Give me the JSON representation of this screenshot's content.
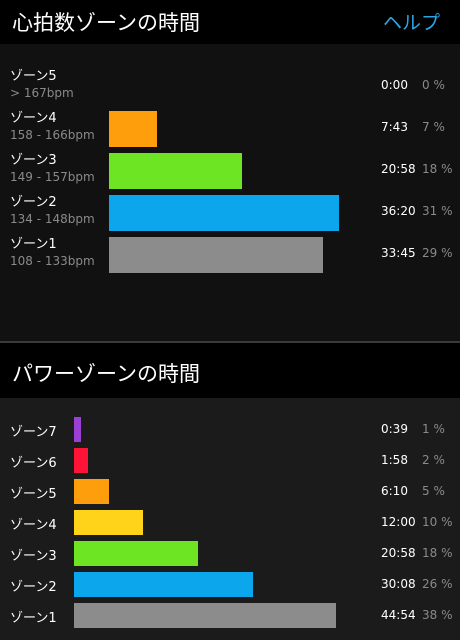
{
  "heart_rate": {
    "title": "心拍数ゾーンの時間",
    "help_label": "ヘルプ",
    "zones": [
      {
        "name": "ゾーン5",
        "range": "> 167bpm",
        "time": "0:00",
        "percent": "0 %",
        "fraction": 0,
        "color": "#000000"
      },
      {
        "name": "ゾーン4",
        "range": "158 - 166bpm",
        "time": "7:43",
        "percent": "7 %",
        "fraction": 0.21,
        "color": "#ff9e0d"
      },
      {
        "name": "ゾーン3",
        "range": "149 - 157bpm",
        "time": "20:58",
        "percent": "18 %",
        "fraction": 0.58,
        "color": "#6de522"
      },
      {
        "name": "ゾーン2",
        "range": "134 - 148bpm",
        "time": "36:20",
        "percent": "31 %",
        "fraction": 1.0,
        "color": "#0ba6ec"
      },
      {
        "name": "ゾーン1",
        "range": "108 - 133bpm",
        "time": "33:45",
        "percent": "29 %",
        "fraction": 0.93,
        "color": "#8c8c8c"
      }
    ]
  },
  "power": {
    "title": "パワーゾーンの時間",
    "zones": [
      {
        "name": "ゾーン7",
        "time": "0:39",
        "percent": "1 %",
        "fraction": 0.025,
        "color": "#9b3fd6"
      },
      {
        "name": "ゾーン6",
        "time": "1:58",
        "percent": "2 %",
        "fraction": 0.054,
        "color": "#ff1438"
      },
      {
        "name": "ゾーン5",
        "time": "6:10",
        "percent": "5 %",
        "fraction": 0.134,
        "color": "#ff9e0d"
      },
      {
        "name": "ゾーン4",
        "time": "12:00",
        "percent": "10 %",
        "fraction": 0.264,
        "color": "#ffd31a"
      },
      {
        "name": "ゾーン3",
        "time": "20:58",
        "percent": "18 %",
        "fraction": 0.475,
        "color": "#6de522"
      },
      {
        "name": "ゾーン2",
        "time": "30:08",
        "percent": "26 %",
        "fraction": 0.685,
        "color": "#0ba6ec"
      },
      {
        "name": "ゾーン1",
        "time": "44:54",
        "percent": "38 %",
        "fraction": 1.0,
        "color": "#8c8c8c"
      }
    ]
  }
}
